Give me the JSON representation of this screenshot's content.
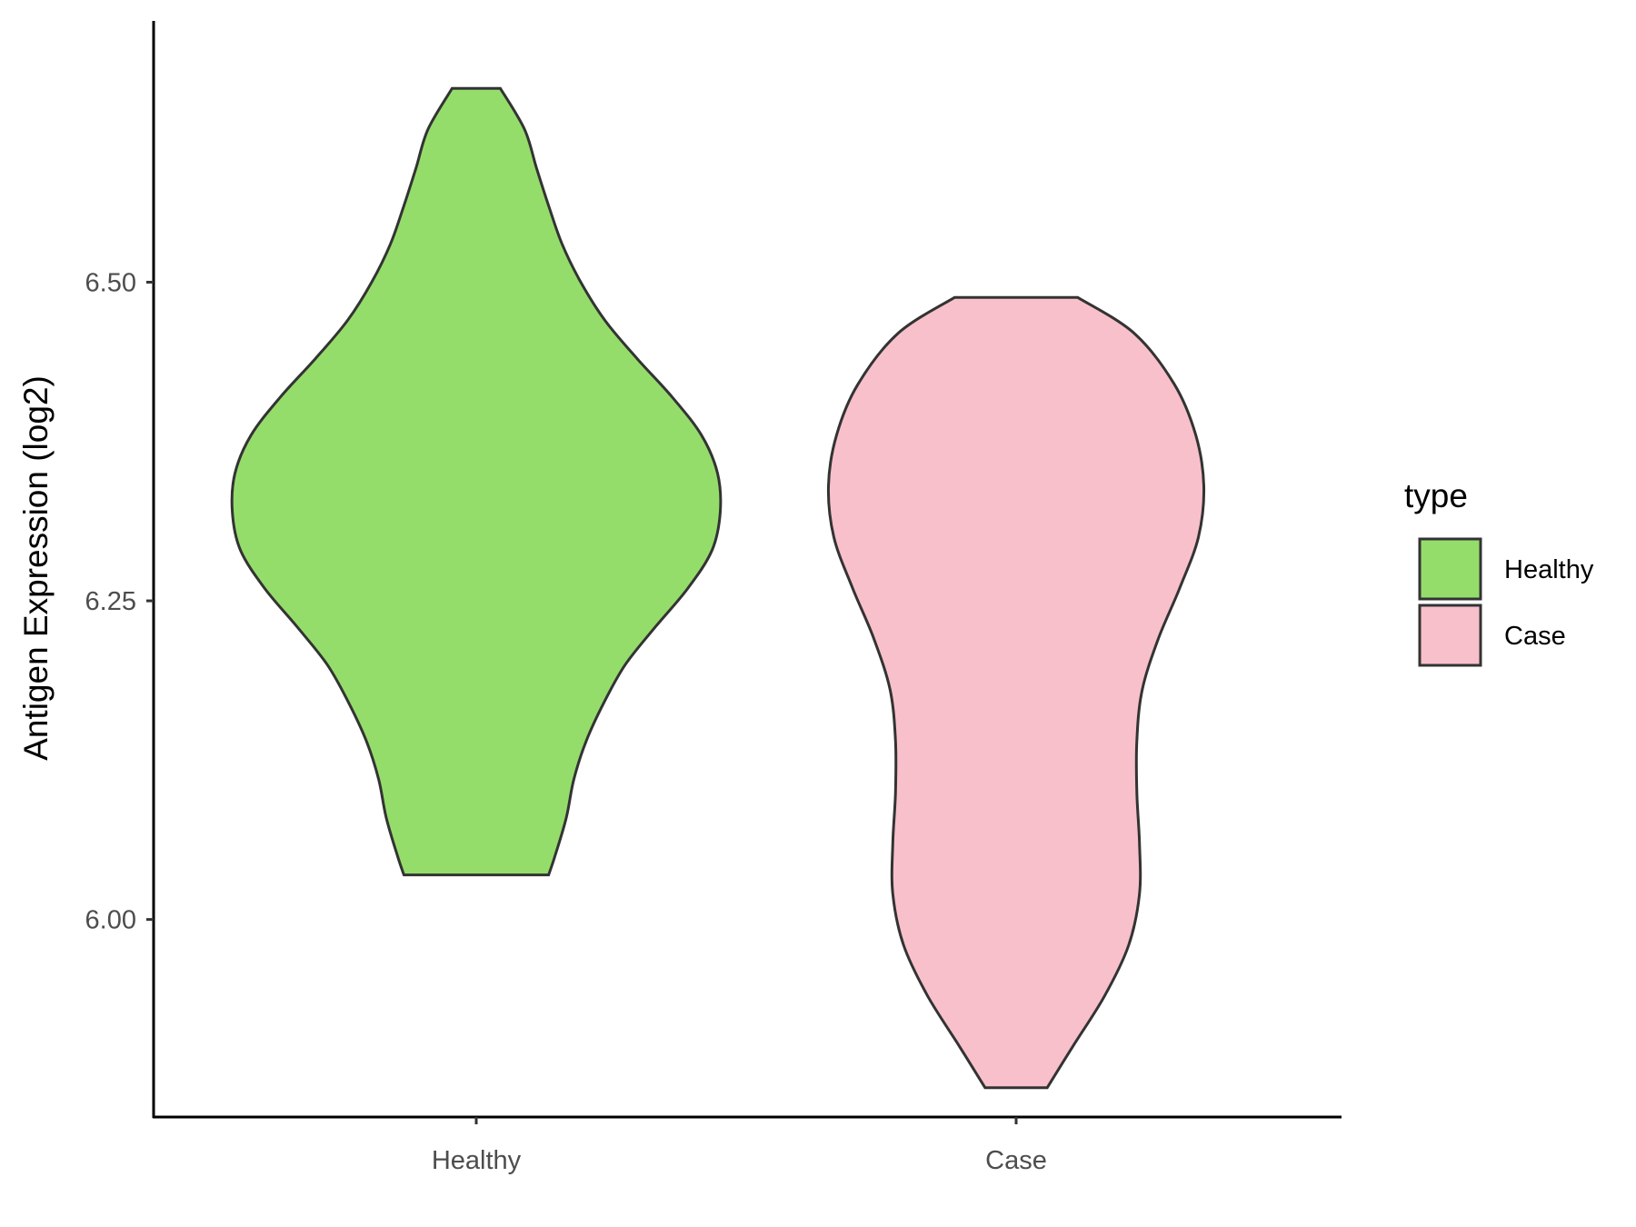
{
  "chart_data": {
    "type": "violin",
    "ylabel": "Antigen Expression (log2)",
    "xlabel": "",
    "categories": [
      "Healthy",
      "Case"
    ],
    "ylim": [
      5.845,
      6.705
    ],
    "yticks": [
      6.0,
      6.25,
      6.5
    ],
    "ytick_labels": [
      "6.00",
      "6.25",
      "6.50"
    ],
    "grid": false,
    "legend": {
      "title": "type",
      "position": "right",
      "entries": [
        {
          "label": "Healthy",
          "color": "#95dd6b"
        },
        {
          "label": "Case",
          "color": "#f8c0cb"
        }
      ]
    },
    "series": [
      {
        "category": "Healthy",
        "color": "#95dd6b",
        "min": 6.035,
        "max": 6.652,
        "density": [
          [
            6.035,
            0.135
          ],
          [
            6.05,
            0.147
          ],
          [
            6.08,
            0.168
          ],
          [
            6.11,
            0.182
          ],
          [
            6.14,
            0.205
          ],
          [
            6.17,
            0.238
          ],
          [
            6.2,
            0.278
          ],
          [
            6.23,
            0.335
          ],
          [
            6.26,
            0.395
          ],
          [
            6.29,
            0.44
          ],
          [
            6.32,
            0.455
          ],
          [
            6.35,
            0.45
          ],
          [
            6.38,
            0.42
          ],
          [
            6.41,
            0.365
          ],
          [
            6.44,
            0.3
          ],
          [
            6.47,
            0.24
          ],
          [
            6.5,
            0.195
          ],
          [
            6.53,
            0.16
          ],
          [
            6.56,
            0.135
          ],
          [
            6.59,
            0.112
          ],
          [
            6.62,
            0.09
          ],
          [
            6.652,
            0.045
          ]
        ]
      },
      {
        "category": "Case",
        "color": "#f8c0cb",
        "min": 5.868,
        "max": 6.488,
        "density": [
          [
            5.868,
            0.058
          ],
          [
            5.9,
            0.105
          ],
          [
            5.94,
            0.165
          ],
          [
            5.98,
            0.21
          ],
          [
            6.02,
            0.23
          ],
          [
            6.06,
            0.23
          ],
          [
            6.1,
            0.225
          ],
          [
            6.14,
            0.225
          ],
          [
            6.18,
            0.235
          ],
          [
            6.22,
            0.265
          ],
          [
            6.26,
            0.305
          ],
          [
            6.3,
            0.34
          ],
          [
            6.34,
            0.35
          ],
          [
            6.38,
            0.335
          ],
          [
            6.42,
            0.295
          ],
          [
            6.46,
            0.22
          ],
          [
            6.488,
            0.115
          ]
        ]
      }
    ]
  }
}
